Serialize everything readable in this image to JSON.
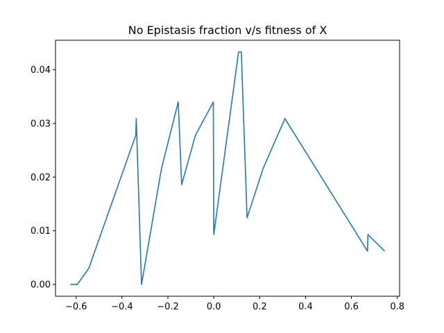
{
  "chart_data": {
    "type": "line",
    "title": "No Epistasis fraction v/s fitness of X",
    "xlabel": "",
    "ylabel": "",
    "xlim": [
      -0.69,
      0.81
    ],
    "ylim": [
      -0.0022,
      0.0455
    ],
    "grid": false,
    "x_ticks": [
      -0.6,
      -0.4,
      -0.2,
      0.0,
      0.2,
      0.4,
      0.6,
      0.8
    ],
    "x_tick_labels": [
      "−0.6",
      "−0.4",
      "−0.2",
      "0.0",
      "0.2",
      "0.4",
      "0.6",
      "0.8"
    ],
    "y_ticks": [
      0.0,
      0.01,
      0.02,
      0.03,
      0.04
    ],
    "y_tick_labels": [
      "0.00",
      "0.01",
      "0.02",
      "0.03",
      "0.04"
    ],
    "line_color": "#1f77b4",
    "series": [
      {
        "x": [
          -0.625,
          -0.595,
          -0.545,
          -0.34,
          -0.338,
          -0.315,
          -0.228,
          -0.155,
          -0.14,
          -0.08,
          -0.002,
          0.0,
          0.108,
          0.12,
          0.145,
          0.215,
          0.31,
          0.67,
          0.672,
          0.745
        ],
        "y": [
          0.0,
          0.0,
          0.003,
          0.0278,
          0.0309,
          0.0,
          0.0216,
          0.034,
          0.0186,
          0.0278,
          0.034,
          0.0093,
          0.0433,
          0.0433,
          0.0124,
          0.0216,
          0.0309,
          0.0062,
          0.0093,
          0.0062
        ]
      }
    ]
  }
}
